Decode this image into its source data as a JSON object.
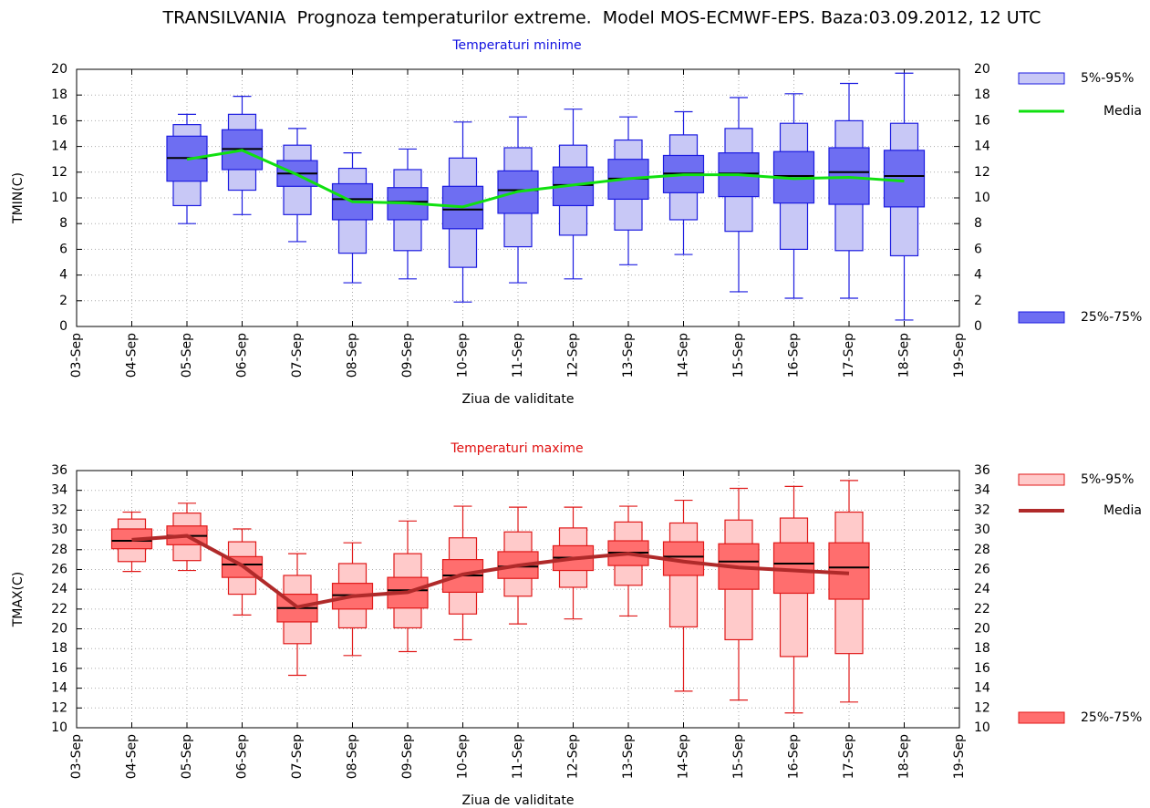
{
  "title": "TRANSILVANIA  Prognoza temperaturilor extreme.  Model MOS-ECMWF-EPS. Baza:03.09.2012, 12 UTC",
  "chart_data": [
    {
      "type": "box",
      "title": "Temperaturi minime",
      "title_color": "#1010e0",
      "xlabel": "Ziua de validitate",
      "ylabel": "TMIN(C)",
      "categories": [
        "03-Sep",
        "04-Sep",
        "05-Sep",
        "06-Sep",
        "07-Sep",
        "08-Sep",
        "09-Sep",
        "10-Sep",
        "11-Sep",
        "12-Sep",
        "13-Sep",
        "14-Sep",
        "15-Sep",
        "16-Sep",
        "17-Sep",
        "18-Sep",
        "19-Sep"
      ],
      "min": [
        null,
        null,
        8.0,
        8.7,
        6.6,
        3.4,
        3.7,
        1.9,
        3.4,
        3.7,
        4.8,
        5.6,
        2.7,
        2.2,
        2.2,
        0.5,
        null
      ],
      "p5": [
        null,
        null,
        9.4,
        10.6,
        8.7,
        5.7,
        5.9,
        4.6,
        6.2,
        7.1,
        7.5,
        8.3,
        7.4,
        6.0,
        5.9,
        5.5,
        null
      ],
      "p25": [
        null,
        null,
        11.3,
        12.2,
        10.9,
        8.3,
        8.3,
        7.6,
        8.8,
        9.4,
        9.9,
        10.4,
        10.1,
        9.6,
        9.5,
        9.3,
        null
      ],
      "median": [
        null,
        null,
        13.1,
        13.8,
        11.9,
        9.9,
        9.7,
        9.1,
        10.6,
        11.0,
        11.5,
        11.9,
        11.9,
        11.7,
        12.0,
        11.7,
        null
      ],
      "p75": [
        null,
        null,
        14.8,
        15.3,
        12.9,
        11.1,
        10.8,
        10.9,
        12.1,
        12.4,
        13.0,
        13.3,
        13.5,
        13.6,
        13.9,
        13.7,
        null
      ],
      "p95": [
        null,
        null,
        15.7,
        16.5,
        14.1,
        12.3,
        12.2,
        13.1,
        13.9,
        14.1,
        14.5,
        14.9,
        15.4,
        15.8,
        16.0,
        15.8,
        null
      ],
      "max": [
        null,
        null,
        16.5,
        17.9,
        15.4,
        13.5,
        13.8,
        15.9,
        16.3,
        16.9,
        16.3,
        16.7,
        17.8,
        18.1,
        18.9,
        19.7,
        null
      ],
      "mean": [
        null,
        null,
        13.0,
        13.7,
        11.8,
        9.7,
        9.6,
        9.3,
        10.5,
        11.0,
        11.5,
        11.8,
        11.8,
        11.5,
        11.6,
        11.3,
        null
      ],
      "legend": {
        "outer": "5%-95%",
        "mean": "Media",
        "inner": "25%-75%"
      },
      "colors": {
        "outer": "#c8c8f6",
        "inner": "#6e6ef2",
        "stroke": "#1c1ce0",
        "mean": "#10e010"
      },
      "mean_width": 3,
      "ylim": [
        0,
        20
      ],
      "yticks": [
        0,
        2,
        4,
        6,
        8,
        10,
        12,
        14,
        16,
        18,
        20
      ],
      "grid": true
    },
    {
      "type": "box",
      "title": "Temperaturi maxime",
      "title_color": "#e01010",
      "xlabel": "Ziua de validitate",
      "ylabel": "TMAX(C)",
      "categories": [
        "03-Sep",
        "04-Sep",
        "05-Sep",
        "06-Sep",
        "07-Sep",
        "08-Sep",
        "09-Sep",
        "10-Sep",
        "11-Sep",
        "12-Sep",
        "13-Sep",
        "14-Sep",
        "15-Sep",
        "16-Sep",
        "17-Sep",
        "18-Sep",
        "19-Sep"
      ],
      "min": [
        null,
        25.8,
        25.9,
        21.4,
        15.3,
        17.3,
        17.7,
        18.9,
        20.5,
        21.0,
        21.3,
        13.7,
        12.8,
        11.5,
        12.6,
        null,
        null
      ],
      "p5": [
        null,
        26.8,
        26.9,
        23.5,
        18.5,
        20.1,
        20.1,
        21.5,
        23.3,
        24.2,
        24.4,
        20.2,
        18.9,
        17.2,
        17.5,
        null,
        null
      ],
      "p25": [
        null,
        28.1,
        28.5,
        25.2,
        20.7,
        22.0,
        22.1,
        23.7,
        25.1,
        25.9,
        26.4,
        25.4,
        24.0,
        23.6,
        23.0,
        null,
        null
      ],
      "median": [
        null,
        28.9,
        29.4,
        26.5,
        22.1,
        23.4,
        23.9,
        25.4,
        26.3,
        27.2,
        27.7,
        27.3,
        26.8,
        26.6,
        26.2,
        null,
        null
      ],
      "p75": [
        null,
        30.1,
        30.4,
        27.3,
        23.5,
        24.6,
        25.2,
        27.0,
        27.8,
        28.4,
        28.9,
        28.8,
        28.6,
        28.7,
        28.7,
        null,
        null
      ],
      "p95": [
        null,
        31.1,
        31.7,
        28.8,
        25.4,
        26.6,
        27.6,
        29.2,
        29.8,
        30.2,
        30.8,
        30.7,
        31.0,
        31.2,
        31.8,
        null,
        null
      ],
      "max": [
        null,
        31.8,
        32.7,
        30.1,
        27.6,
        28.7,
        30.9,
        32.4,
        32.3,
        32.3,
        32.4,
        33.0,
        34.2,
        34.4,
        35.0,
        null,
        null
      ],
      "mean": [
        null,
        29.0,
        29.4,
        26.4,
        22.2,
        23.3,
        23.7,
        25.5,
        26.4,
        27.1,
        27.6,
        26.8,
        26.2,
        25.9,
        25.6,
        null,
        null
      ],
      "legend": {
        "outer": "5%-95%",
        "mean": "Media",
        "inner": "25%-75%"
      },
      "colors": {
        "outer": "#ffcaca",
        "inner": "#ff6e6e",
        "stroke": "#e01a1a",
        "mean": "#b02a2a"
      },
      "mean_width": 4,
      "ylim": [
        10,
        36
      ],
      "yticks": [
        10,
        12,
        14,
        16,
        18,
        20,
        22,
        24,
        26,
        28,
        30,
        32,
        34,
        36
      ],
      "grid": true
    }
  ]
}
